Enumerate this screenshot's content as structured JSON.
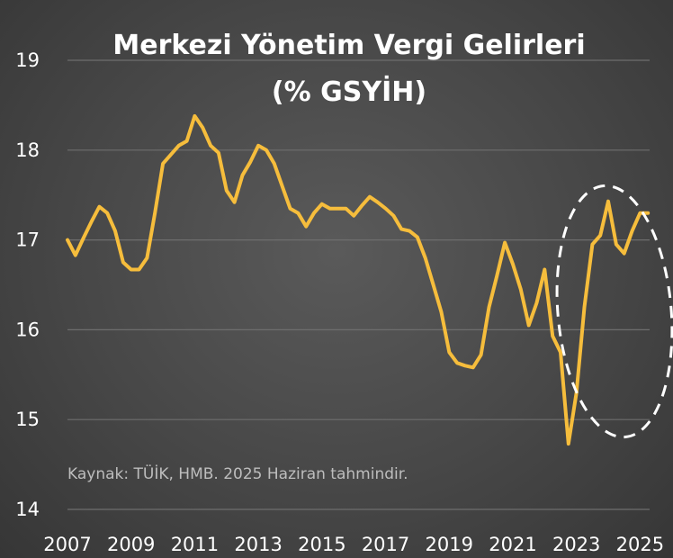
{
  "chart_data": {
    "type": "line",
    "title": "Merkezi Yönetim Vergi Gelirleri",
    "subtitle": "(% GSYİH)",
    "xlabel": "",
    "ylabel": "",
    "ylim": [
      14,
      19
    ],
    "yticks": [
      "14",
      "15",
      "16",
      "17",
      "18",
      "19"
    ],
    "xticks": [
      "2007",
      "2009",
      "2011",
      "2013",
      "2015",
      "2017",
      "2019",
      "2021",
      "2023",
      "2025"
    ],
    "xlim": [
      2007,
      2025.3
    ],
    "grid": true,
    "source_note": "Kaynak: TÜİK, HMB. 2025 Haziran tahmindir.",
    "colors": {
      "line": "#f6bd3c",
      "grid": "#6e6e6e",
      "ellipse": "#ffffff"
    },
    "series": [
      {
        "x": [
          2007.0,
          2007.25,
          2007.5,
          2007.75,
          2008.0,
          2008.25,
          2008.5,
          2008.75,
          2009.0,
          2009.25,
          2009.5,
          2009.75,
          2010.0,
          2010.25,
          2010.5,
          2010.75,
          2011.0,
          2011.25,
          2011.5,
          2011.75,
          2012.0,
          2012.25,
          2012.5,
          2012.75,
          2013.0,
          2013.25,
          2013.5,
          2013.75,
          2014.0,
          2014.25,
          2014.5,
          2014.75,
          2015.0,
          2015.25,
          2015.5,
          2015.75,
          2016.0,
          2016.25,
          2016.5,
          2016.75,
          2017.0,
          2017.25,
          2017.5,
          2017.75,
          2018.0,
          2018.25,
          2018.5,
          2018.75,
          2019.0,
          2019.25,
          2019.5,
          2019.75,
          2020.0,
          2020.25,
          2020.5,
          2020.75,
          2021.0,
          2021.25,
          2021.5,
          2021.75,
          2022.0,
          2022.25,
          2022.5,
          2022.75,
          2023.0,
          2023.25,
          2023.5,
          2023.75,
          2024.0,
          2024.25,
          2024.5,
          2024.75,
          2025.0,
          2025.25
        ],
        "y": [
          17.0,
          16.83,
          17.02,
          17.2,
          17.37,
          17.3,
          17.1,
          16.75,
          16.67,
          16.67,
          16.8,
          17.3,
          17.85,
          17.95,
          18.05,
          18.1,
          18.38,
          18.25,
          18.05,
          17.97,
          17.55,
          17.42,
          17.72,
          17.87,
          18.05,
          18.0,
          17.85,
          17.6,
          17.35,
          17.3,
          17.15,
          17.3,
          17.4,
          17.35,
          17.35,
          17.35,
          17.27,
          17.38,
          17.48,
          17.42,
          17.35,
          17.27,
          17.12,
          17.1,
          17.03,
          16.8,
          16.5,
          16.2,
          15.75,
          15.63,
          15.6,
          15.58,
          15.72,
          16.25,
          16.6,
          16.97,
          16.73,
          16.45,
          16.05,
          16.3,
          16.67,
          15.93,
          15.75,
          14.73,
          15.3,
          16.25,
          16.95,
          17.05,
          17.43,
          16.95,
          16.85,
          17.1,
          17.3,
          17.3
        ]
      }
    ]
  }
}
